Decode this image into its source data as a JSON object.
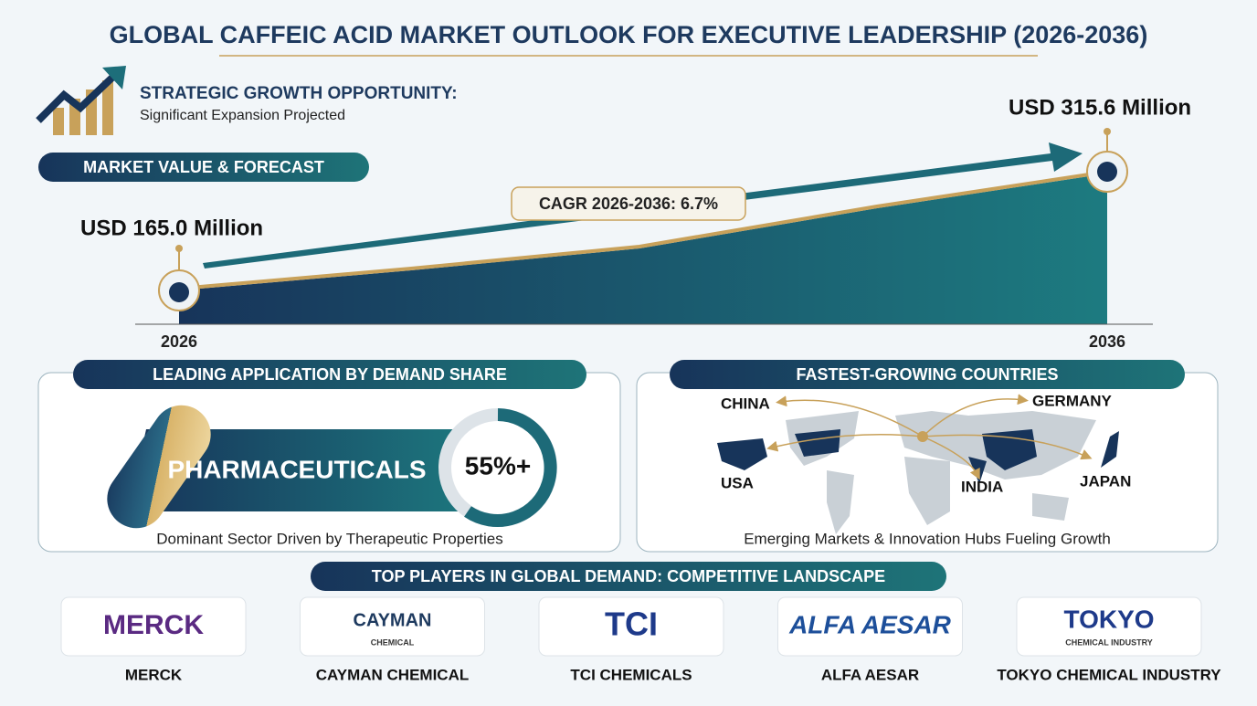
{
  "title": "GLOBAL CAFFEIC ACID MARKET OUTLOOK FOR EXECUTIVE LEADERSHIP (2026-2036)",
  "growth": {
    "heading": "STRATEGIC GROWTH OPPORTUNITY:",
    "subheading": "Significant Expansion Projected"
  },
  "forecast": {
    "label": "MARKET VALUE & FORECAST",
    "start_value": "USD 165.0 Million",
    "end_value": "USD 315.6 Million",
    "cagr": "CAGR 2026-2036: 6.7%",
    "start_year": "2026",
    "end_year": "2036"
  },
  "application": {
    "heading": "LEADING APPLICATION BY DEMAND SHARE",
    "sector": "PHARMACEUTICALS",
    "share": "55%+",
    "caption": "Dominant Sector Driven by Therapeutic Properties"
  },
  "countries": {
    "heading": "FASTEST-GROWING COUNTRIES",
    "labels": [
      "CHINA",
      "GERMANY",
      "USA",
      "INDIA",
      "JAPAN"
    ],
    "caption": "Emerging Markets & Innovation Hubs Fueling Growth"
  },
  "players": {
    "heading": "TOP PLAYERS IN GLOBAL DEMAND: COMPETITIVE LANDSCAPE",
    "companies": [
      {
        "logo": "MERCK",
        "name": "MERCK"
      },
      {
        "logo": "CAYMAN",
        "logo_sub": "CHEMICAL",
        "name": "CAYMAN CHEMICAL"
      },
      {
        "logo": "TCI",
        "name": "TCI CHEMICALS"
      },
      {
        "logo": "ALFA AESAR",
        "name": "ALFA AESAR"
      },
      {
        "logo": "TOKYO",
        "logo_sub": "CHEMICAL INDUSTRY",
        "name": "TOKYO CHEMICAL INDUSTRY"
      }
    ]
  }
}
